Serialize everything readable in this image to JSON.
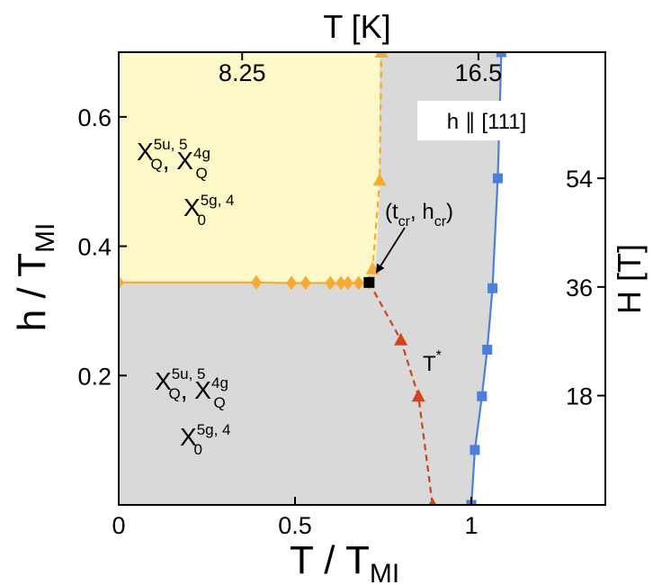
{
  "chart_data": {
    "type": "scatter",
    "title": "",
    "xlabel": {
      "main": "T / T",
      "sub": "MI"
    },
    "ylabel": {
      "main": "h / T",
      "sub": "MI"
    },
    "top_axis": {
      "label": "T [K]",
      "ticks": [
        {
          "x": 0.35,
          "label": "8.25"
        },
        {
          "x": 1.02,
          "label": "16.5"
        }
      ]
    },
    "right_axis": {
      "label": "H [T]",
      "ticks": [
        {
          "y": 0.169,
          "label": "18"
        },
        {
          "y": 0.337,
          "label": "36"
        },
        {
          "y": 0.505,
          "label": "54"
        }
      ]
    },
    "xlim": [
      0,
      1.38
    ],
    "ylim": [
      0,
      0.7
    ],
    "x_ticks": [
      {
        "v": 0,
        "label": "0"
      },
      {
        "v": 0.5,
        "label": "0.5"
      },
      {
        "v": 1,
        "label": "1"
      }
    ],
    "y_ticks": [
      {
        "v": 0.2,
        "label": "0.2"
      },
      {
        "v": 0.4,
        "label": "0.4"
      },
      {
        "v": 0.6,
        "label": "0.6"
      }
    ],
    "grid": false,
    "regions": [
      {
        "name": "yellow",
        "color": "#fdf8c8",
        "polygon": [
          [
            0,
            0.344
          ],
          [
            0.71,
            0.344
          ],
          [
            0.72,
            0.361
          ],
          [
            0.73,
            0.38
          ],
          [
            0.74,
            0.485
          ],
          [
            0.74,
            0.7
          ],
          [
            0,
            0.7
          ]
        ]
      },
      {
        "name": "gray",
        "color": "#d9d9d9"
      }
    ],
    "series": [
      {
        "name": "",
        "marker": "diamond",
        "color": "#f7ab32",
        "line": "solid",
        "x": [
          0,
          0.39,
          0.49,
          0.53,
          0.6,
          0.63,
          0.65,
          0.68,
          0.71
        ],
        "y": [
          0.344,
          0.344,
          0.343,
          0.343,
          0.343,
          0.343,
          0.343,
          0.343,
          0.344
        ]
      },
      {
        "name": "",
        "marker": "triangle",
        "color": "#f7ab32",
        "line": "dashed",
        "x": [
          0.71,
          0.72,
          0.74,
          0.745
        ],
        "y": [
          0.344,
          0.365,
          0.502,
          0.7
        ]
      },
      {
        "name": "T*",
        "marker": "triangle",
        "color": "#d3421c",
        "line": "dashed",
        "x": [
          0.71,
          0.8,
          0.85,
          0.89
        ],
        "y": [
          0.344,
          0.255,
          0.168,
          0.0
        ]
      },
      {
        "name": "",
        "marker": "square",
        "color": "#4a7fdc",
        "line": "solid",
        "x": [
          1.0,
          1.01,
          1.03,
          1.045,
          1.06,
          1.075,
          1.08,
          1.085
        ],
        "y": [
          0.0,
          0.085,
          0.168,
          0.24,
          0.335,
          0.505,
          0.6,
          0.7
        ]
      }
    ],
    "critical_point": {
      "x": 0.71,
      "y": 0.344,
      "color": "#000000"
    }
  },
  "annotations": {
    "field_direction": "h ∥ [111]",
    "critical_label": {
      "open": "(t",
      "t_sub": "cr",
      "mid": ", h",
      "h_sub": "cr",
      "close": ")"
    },
    "tstar": {
      "base": "T",
      "sup": "*"
    }
  },
  "regions_text": {
    "upper": {
      "line1": [
        {
          "base": "X",
          "sup": "5u, 5",
          "sub": "Q"
        },
        {
          "sep": ", "
        },
        {
          "base": "X",
          "sup": "4g",
          "sub": "Q"
        }
      ],
      "line2": [
        {
          "base": "X",
          "sup": "5g, 4",
          "sub": "0"
        }
      ]
    },
    "lower": {
      "line1": [
        {
          "base": "X",
          "sup": "5u, 5",
          "sub": "Q"
        },
        {
          "sep": ", "
        },
        {
          "base": "X",
          "sup": "4g",
          "sub": "Q"
        }
      ],
      "line2": [
        {
          "base": "X",
          "sup": "5g, 4",
          "sub": "0"
        }
      ]
    }
  }
}
